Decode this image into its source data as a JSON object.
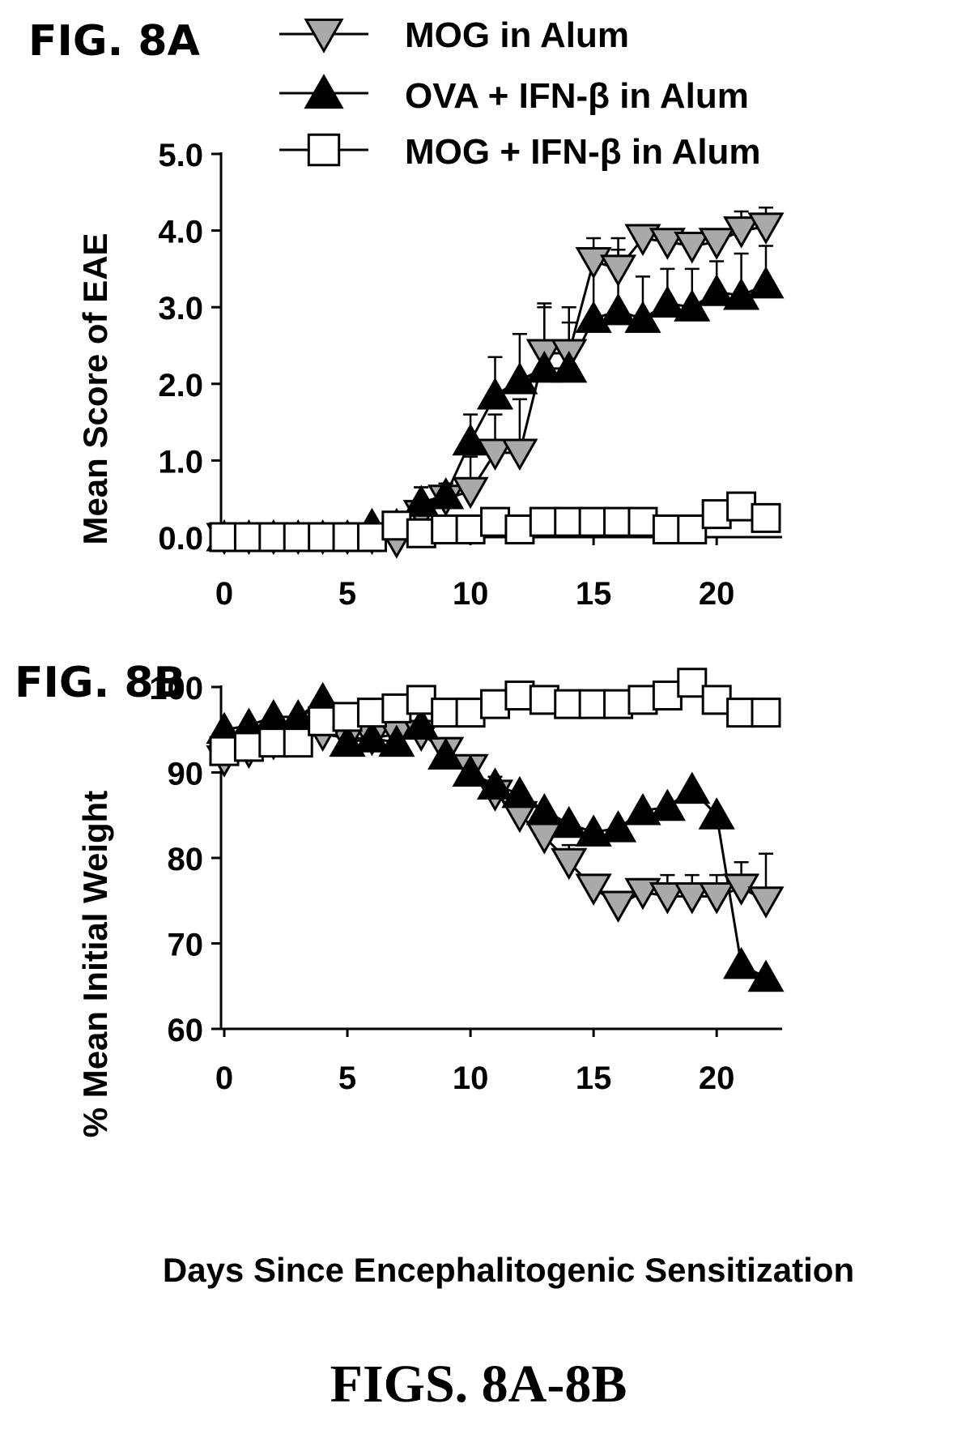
{
  "figure": {
    "caption": "FIGS. 8A-8B",
    "xlabel": "Days Since Encephalitogenic Sensitization",
    "legend": [
      {
        "series": "mog",
        "label": "MOG in Alum"
      },
      {
        "series": "ova_ifn",
        "label": "OVA + IFN-β in Alum"
      },
      {
        "series": "mog_ifn",
        "label": "MOG + IFN-β in Alum"
      }
    ]
  },
  "colors": {
    "mog_fill": "#a9a9a9",
    "ova_ifn_fill": "#000000",
    "mog_ifn_fill": "#ffffff",
    "stroke": "#000000"
  },
  "chart_data": [
    {
      "panel": "FIG. 8A",
      "type": "line",
      "ylabel": "Mean Score of EAE",
      "xlim": [
        0,
        22
      ],
      "xticks": [
        0,
        5,
        10,
        15,
        20
      ],
      "ylim": [
        0,
        5
      ],
      "yticks": [
        "0.0",
        "1.0",
        "2.0",
        "3.0",
        "4.0",
        "5.0"
      ],
      "x": [
        0,
        1,
        2,
        3,
        4,
        5,
        6,
        7,
        8,
        9,
        10,
        11,
        12,
        13,
        14,
        15,
        16,
        17,
        18,
        19,
        20,
        21,
        22
      ],
      "series": [
        {
          "key": "mog",
          "name": "MOG in Alum",
          "marker": "triangle-down",
          "values": [
            0,
            0,
            0,
            0,
            0,
            0,
            0,
            -0.05,
            0.3,
            0.5,
            0.6,
            1.1,
            1.1,
            2.4,
            2.4,
            3.6,
            3.5,
            3.9,
            3.85,
            3.8,
            3.85,
            4.0,
            4.05
          ],
          "errors": [
            0,
            0,
            0,
            0,
            0,
            0,
            0,
            0,
            0.35,
            0.2,
            0.45,
            0.5,
            0.7,
            0.65,
            0.6,
            0.3,
            0.4,
            0.05,
            0.05,
            0.1,
            0.1,
            0.25,
            0.25
          ]
        },
        {
          "key": "ova_ifn",
          "name": "OVA + IFN-β in Alum",
          "marker": "triangle-up",
          "values": [
            0,
            0,
            0,
            0,
            0,
            0,
            0.15,
            0.15,
            0.45,
            0.55,
            1.25,
            1.85,
            2.05,
            2.2,
            2.2,
            2.85,
            2.95,
            2.85,
            3.05,
            3.0,
            3.2,
            3.15,
            3.3
          ],
          "errors": [
            0,
            0,
            0,
            0,
            0,
            0,
            0,
            0,
            0.2,
            0.15,
            0.35,
            0.5,
            0.6,
            0.8,
            0.6,
            0.9,
            0.8,
            0.55,
            0.45,
            0.5,
            0.4,
            0.55,
            0.5
          ]
        },
        {
          "key": "mog_ifn",
          "name": "MOG + IFN-β in Alum",
          "marker": "square",
          "values": [
            0,
            0,
            0,
            0,
            0,
            0,
            0,
            0.15,
            0.05,
            0.1,
            0.1,
            0.2,
            0.1,
            0.2,
            0.2,
            0.2,
            0.2,
            0.2,
            0.1,
            0.1,
            0.3,
            0.4,
            0.25
          ],
          "errors": [
            0,
            0,
            0,
            0,
            0,
            0,
            0,
            0,
            0,
            0,
            0,
            0,
            0,
            0,
            0,
            0,
            0,
            0,
            0,
            0,
            0,
            0,
            0
          ]
        }
      ]
    },
    {
      "panel": "FIG. 8B",
      "type": "line",
      "ylabel": "% Mean Initial Weight",
      "xlim": [
        0,
        22
      ],
      "xticks": [
        0,
        5,
        10,
        15,
        20
      ],
      "ylim": [
        60,
        100
      ],
      "yticks": [
        "60",
        "70",
        "80",
        "90",
        "100"
      ],
      "x": [
        0,
        1,
        2,
        3,
        4,
        5,
        6,
        7,
        8,
        9,
        10,
        11,
        12,
        13,
        14,
        15,
        16,
        17,
        18,
        19,
        20,
        21,
        22
      ],
      "series": [
        {
          "key": "mog",
          "name": "MOG in Alum",
          "marker": "triangle-down",
          "values": [
            91.5,
            92.5,
            93.5,
            94,
            94.5,
            94,
            94,
            94.5,
            94.5,
            92.5,
            90.5,
            87.5,
            85,
            82.5,
            79.5,
            76.5,
            74.5,
            76,
            75.5,
            75.5,
            75.5,
            76.5,
            75
          ],
          "errors": [
            0,
            0,
            0,
            0,
            0,
            0,
            0,
            0,
            0,
            1,
            1.5,
            2,
            2.5,
            2.5,
            2,
            1.5,
            1.5,
            1.5,
            2.5,
            2.5,
            2.5,
            3,
            5.5
          ]
        },
        {
          "key": "ova_ifn",
          "name": "OVA + IFN-β in Alum",
          "marker": "triangle-up",
          "values": [
            95,
            95.5,
            96.5,
            96.5,
            98.5,
            93.5,
            94,
            93.5,
            95.5,
            92,
            90,
            88.5,
            87.5,
            85.5,
            84,
            83,
            83.5,
            85.5,
            86,
            88,
            85,
            67.5,
            66
          ]
        },
        {
          "key": "mog_ifn",
          "name": "MOG + IFN-β in Alum",
          "marker": "square",
          "values": [
            92.5,
            93,
            93.5,
            93.5,
            96,
            96.5,
            97,
            97.5,
            98.5,
            97,
            97,
            98,
            99,
            98.5,
            98,
            98,
            98,
            98.5,
            99,
            100.5,
            98.5,
            97,
            97
          ]
        }
      ]
    }
  ]
}
